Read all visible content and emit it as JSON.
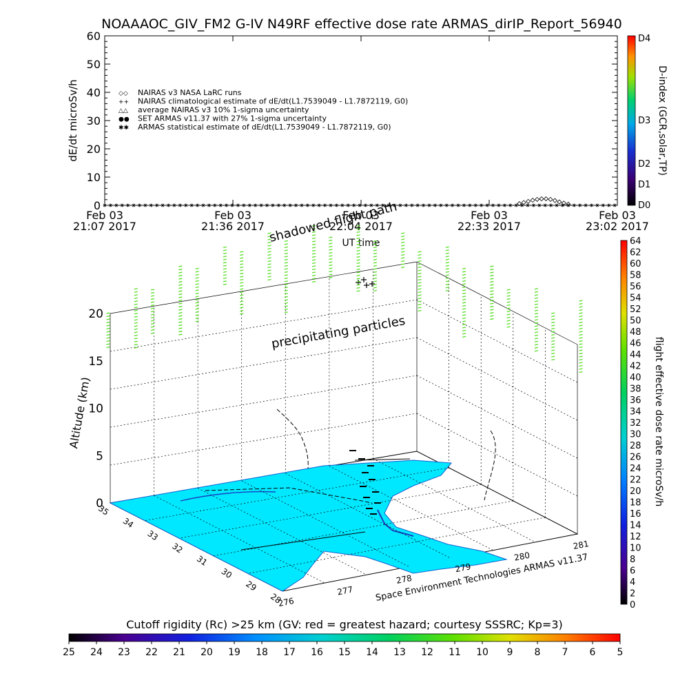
{
  "header": {
    "title": "NOAAAOC_GIV_FM2 G-IV    N49RF   effective dose rate ARMAS_dirIP_Report_56940"
  },
  "chart_data": [
    {
      "type": "scatter",
      "ylabel": "dE/dt microSv/h",
      "xlabel": "UT time",
      "ylim": [
        0,
        60
      ],
      "yticks": [
        "0",
        "10",
        "20",
        "30",
        "40",
        "50",
        "60"
      ],
      "xticks": [
        {
          "date": "Feb 03",
          "time": "21:07 2017"
        },
        {
          "date": "Feb 03",
          "time": "21:36 2017"
        },
        {
          "date": "Feb 03",
          "time": "22:04 2017"
        },
        {
          "date": "Feb 03",
          "time": "22:33 2017"
        },
        {
          "date": "Feb 03",
          "time": "23:02 2017"
        }
      ],
      "legend": [
        {
          "symbol": "◇◇",
          "label": "NAIRAS v3 NASA LaRC runs"
        },
        {
          "symbol": "++",
          "label": "NAIRAS climatological estimate of dE/dt(L1.7539049 - L1.7872119, G0)"
        },
        {
          "symbol": "△△",
          "label": "average NAIRAS v3 10% 1-sigma uncertainty"
        },
        {
          "symbol": "●●",
          "label": "SET ARMAS v11.37 with 27% 1-sigma uncertainty"
        },
        {
          "symbol": "✱✱",
          "label": "ARMAS statistical estimate of dE/dt(L1.7539049 - L1.7872119, G0)"
        }
      ],
      "series": [
        {
          "name": "NAIRAS v3 NASA LaRC runs",
          "x": [
            "22:40",
            "22:41",
            "22:42",
            "22:43",
            "22:44",
            "22:45",
            "22:46",
            "22:47",
            "22:48",
            "22:49",
            "22:50",
            "22:51"
          ],
          "values": [
            0.6,
            1.0,
            1.4,
            1.8,
            2.1,
            2.3,
            2.3,
            2.1,
            1.7,
            1.2,
            0.8,
            0.4
          ]
        },
        {
          "name": "ARMAS statistical estimate of dE/dt(L1.7539049 - L1.7872119, G0)",
          "x_range": [
            "21:07",
            "23:02"
          ],
          "values_constant": 0
        }
      ],
      "dindex_bar": {
        "title": "D-index (GCR,solar,TP)",
        "labels": [
          "D0",
          "D1",
          "D2",
          "D3",
          "D4"
        ]
      }
    },
    {
      "type": "scatter",
      "ylabel": "Altitude (km)",
      "zticks": [
        "0",
        "5",
        "10",
        "15",
        "20"
      ],
      "lat_ticks": [
        "35",
        "34",
        "33",
        "32",
        "31",
        "30",
        "29",
        "28"
      ],
      "lon_ticks": [
        "276",
        "277",
        "278",
        "279",
        "280",
        "281"
      ],
      "annotations": [
        "shadowed flight path",
        "precipitating particles"
      ],
      "credit": "Space Environment Technologies ARMAS v11.37",
      "dose_bar": {
        "title": "flight effective dose rate microSv/h",
        "labels": [
          "0",
          "2",
          "4",
          "6",
          "8",
          "10",
          "12",
          "14",
          "16",
          "18",
          "20",
          "22",
          "24",
          "26",
          "28",
          "30",
          "32",
          "34",
          "36",
          "38",
          "40",
          "42",
          "44",
          "46",
          "48",
          "50",
          "52",
          "54",
          "56",
          "58",
          "60",
          "62",
          "64"
        ]
      }
    },
    {
      "type": "heatmap",
      "title": "Cutoff rigidity (Rc) >25 km (GV: red = greatest hazard; courtesy SSSRC; Kp=3)",
      "labels": [
        "25",
        "24",
        "23",
        "22",
        "21",
        "20",
        "19",
        "18",
        "17",
        "16",
        "15",
        "14",
        "13",
        "12",
        "11",
        "10",
        "9",
        "8",
        "7",
        "6",
        "5"
      ]
    }
  ]
}
